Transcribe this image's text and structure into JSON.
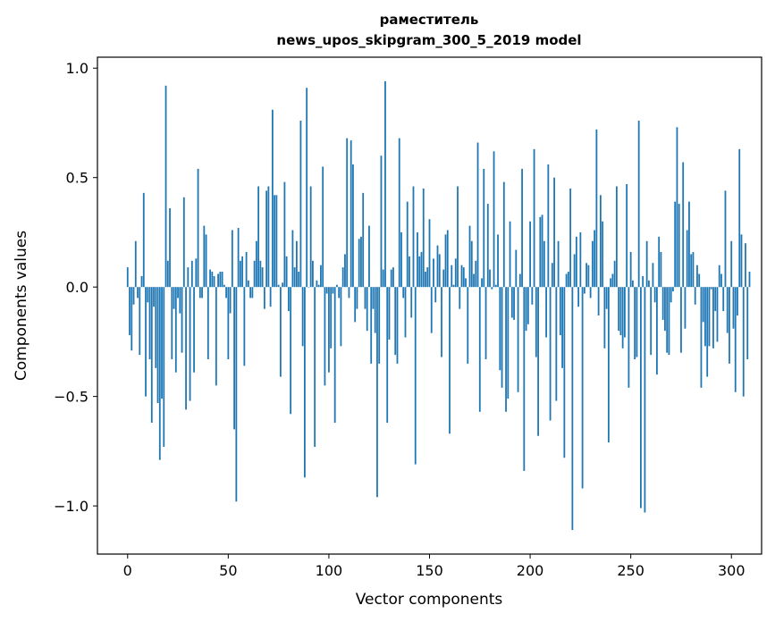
{
  "chart_data": {
    "type": "bar",
    "title_line1": "раместитель",
    "title_line2": "news_upos_skipgram_300_5_2019 model",
    "xlabel": "Vector components",
    "ylabel": "Components values",
    "xlim": [
      -15,
      315
    ],
    "ylim": [
      -1.22,
      1.05
    ],
    "xticks": [
      0,
      50,
      100,
      150,
      200,
      250,
      300
    ],
    "xtick_labels": [
      "0",
      "50",
      "100",
      "150",
      "200",
      "250",
      "300"
    ],
    "yticks": [
      1.0,
      0.5,
      0.0,
      -0.5,
      -1.0
    ],
    "ytick_labels": [
      "1.0",
      "0.5",
      "0.0",
      "−0.5",
      "−1.0"
    ],
    "bar_color": "#1f77b4",
    "grid": false,
    "values": [
      0.09,
      -0.22,
      -0.29,
      -0.08,
      0.21,
      -0.05,
      -0.31,
      0.05,
      0.43,
      -0.5,
      -0.07,
      -0.33,
      -0.62,
      -0.09,
      -0.37,
      -0.53,
      -0.79,
      -0.51,
      -0.73,
      0.92,
      0.12,
      0.36,
      -0.33,
      -0.1,
      -0.39,
      -0.05,
      -0.12,
      -0.3,
      0.41,
      -0.56,
      0.09,
      -0.52,
      0.12,
      -0.39,
      0.13,
      0.54,
      -0.05,
      -0.05,
      0.28,
      0.24,
      -0.33,
      0.08,
      0.07,
      0.05,
      -0.45,
      0.06,
      0.07,
      0.07,
      0.01,
      -0.05,
      -0.33,
      -0.12,
      0.26,
      -0.65,
      -0.98,
      0.27,
      0.12,
      0.14,
      -0.36,
      0.16,
      0.03,
      -0.05,
      -0.05,
      0.12,
      0.21,
      0.46,
      0.12,
      0.09,
      -0.1,
      0.44,
      0.46,
      -0.09,
      0.81,
      0.42,
      0.42,
      0.01,
      -0.41,
      0.02,
      0.48,
      0.14,
      -0.11,
      -0.58,
      0.26,
      0.09,
      0.21,
      0.07,
      0.76,
      -0.27,
      -0.87,
      0.91,
      0.0,
      0.46,
      0.12,
      -0.73,
      0.03,
      0.01,
      0.1,
      0.55,
      -0.45,
      -0.03,
      -0.39,
      -0.28,
      -0.03,
      -0.62,
      0.01,
      -0.05,
      -0.27,
      0.09,
      0.15,
      0.68,
      -0.05,
      0.67,
      0.56,
      -0.16,
      -0.1,
      0.22,
      0.23,
      0.43,
      -0.1,
      -0.2,
      0.28,
      -0.35,
      -0.1,
      -0.21,
      -0.96,
      -0.35,
      0.6,
      0.08,
      0.94,
      -0.62,
      -0.24,
      0.08,
      0.09,
      -0.31,
      -0.35,
      0.68,
      0.25,
      -0.05,
      -0.23,
      0.39,
      0.14,
      -0.14,
      0.46,
      -0.81,
      0.25,
      0.14,
      0.16,
      0.45,
      0.07,
      0.09,
      0.31,
      -0.21,
      0.13,
      -0.07,
      0.19,
      0.15,
      -0.32,
      0.08,
      0.24,
      0.26,
      -0.67,
      0.1,
      0.01,
      0.13,
      0.46,
      -0.1,
      0.1,
      0.09,
      0.04,
      -0.35,
      0.28,
      0.21,
      0.06,
      0.12,
      0.66,
      -0.57,
      0.04,
      0.54,
      -0.33,
      0.38,
      0.08,
      -0.01,
      0.62,
      0.01,
      0.24,
      -0.38,
      -0.46,
      0.48,
      -0.57,
      -0.51,
      0.3,
      -0.14,
      -0.15,
      0.17,
      -0.48,
      0.06,
      0.54,
      -0.84,
      -0.2,
      -0.17,
      0.3,
      -0.08,
      0.63,
      -0.32,
      -0.68,
      0.32,
      0.33,
      0.21,
      -0.23,
      0.56,
      -0.61,
      0.11,
      0.5,
      -0.52,
      0.21,
      -0.22,
      -0.37,
      -0.78,
      0.06,
      0.07,
      0.45,
      -1.11,
      0.15,
      0.23,
      -0.09,
      0.25,
      -0.92,
      -0.03,
      0.11,
      0.1,
      -0.05,
      0.21,
      0.26,
      0.72,
      -0.13,
      0.42,
      0.3,
      -0.28,
      -0.1,
      -0.71,
      0.04,
      0.06,
      0.12,
      0.46,
      -0.2,
      -0.22,
      -0.28,
      -0.23,
      0.47,
      -0.46,
      0.16,
      0.03,
      -0.33,
      -0.32,
      0.76,
      -1.01,
      0.05,
      -1.03,
      0.21,
      0.03,
      -0.31,
      0.11,
      -0.07,
      -0.4,
      0.23,
      0.16,
      -0.15,
      -0.2,
      -0.3,
      -0.31,
      -0.07,
      -0.02,
      0.39,
      0.73,
      0.38,
      -0.3,
      0.57,
      -0.19,
      0.26,
      0.39,
      0.15,
      0.16,
      -0.08,
      0.1,
      0.06,
      -0.46,
      -0.16,
      -0.27,
      -0.41,
      -0.27,
      -0.01,
      -0.28,
      -0.11,
      -0.25,
      0.1,
      0.06,
      -0.11,
      0.44,
      -0.21,
      -0.35,
      0.21,
      -0.19,
      -0.48,
      -0.13,
      0.63,
      0.24,
      -0.5,
      0.2,
      -0.33,
      0.07
    ]
  }
}
